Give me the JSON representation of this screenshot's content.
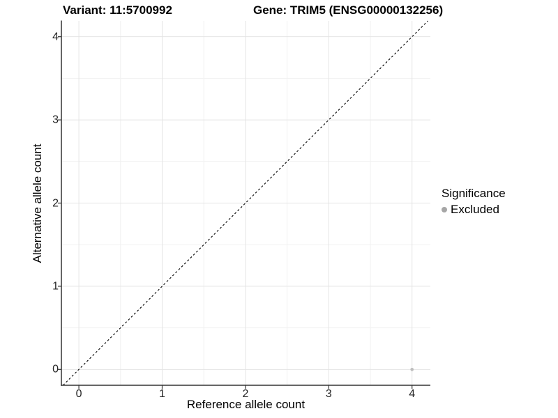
{
  "titles": {
    "variant": "Variant: 11:5700992",
    "gene": "Gene: TRIM5 (ENSG00000132256)"
  },
  "chart_data": {
    "type": "scatter",
    "title": "Variant: 11:5700992  |  Gene: TRIM5 (ENSG00000132256)",
    "xlabel": "Reference allele count",
    "ylabel": "Alternative allele count",
    "xlim": [
      -0.21,
      4.22
    ],
    "ylim": [
      -0.19,
      4.19
    ],
    "x_ticks": [
      0,
      1,
      2,
      3,
      4
    ],
    "y_ticks": [
      0,
      1,
      2,
      3,
      4
    ],
    "x_minor_ticks": [
      0.5,
      1.5,
      2.5,
      3.5
    ],
    "y_minor_ticks": [
      0.5,
      1.5,
      2.5,
      3.5
    ],
    "grid": "major and minor gridlines on white panel",
    "identity_line": {
      "style": "dashed",
      "equation": "y = x",
      "color": "#000000"
    },
    "series": [
      {
        "name": "Excluded",
        "color": "#bdbdbd",
        "points": [
          {
            "x": 4,
            "y": 0
          }
        ]
      }
    ],
    "legend": {
      "position": "right",
      "title": "Significance",
      "entries": [
        {
          "label": "Excluded",
          "color": "#a6a6a6"
        }
      ]
    },
    "colors": {
      "grid_major": "#e4e4e4",
      "grid_minor": "#f1f1f1",
      "axis_line": "#333333",
      "tick_mark": "#333333",
      "point": "#bdbdbd",
      "legend_dot": "#a6a6a6"
    }
  }
}
